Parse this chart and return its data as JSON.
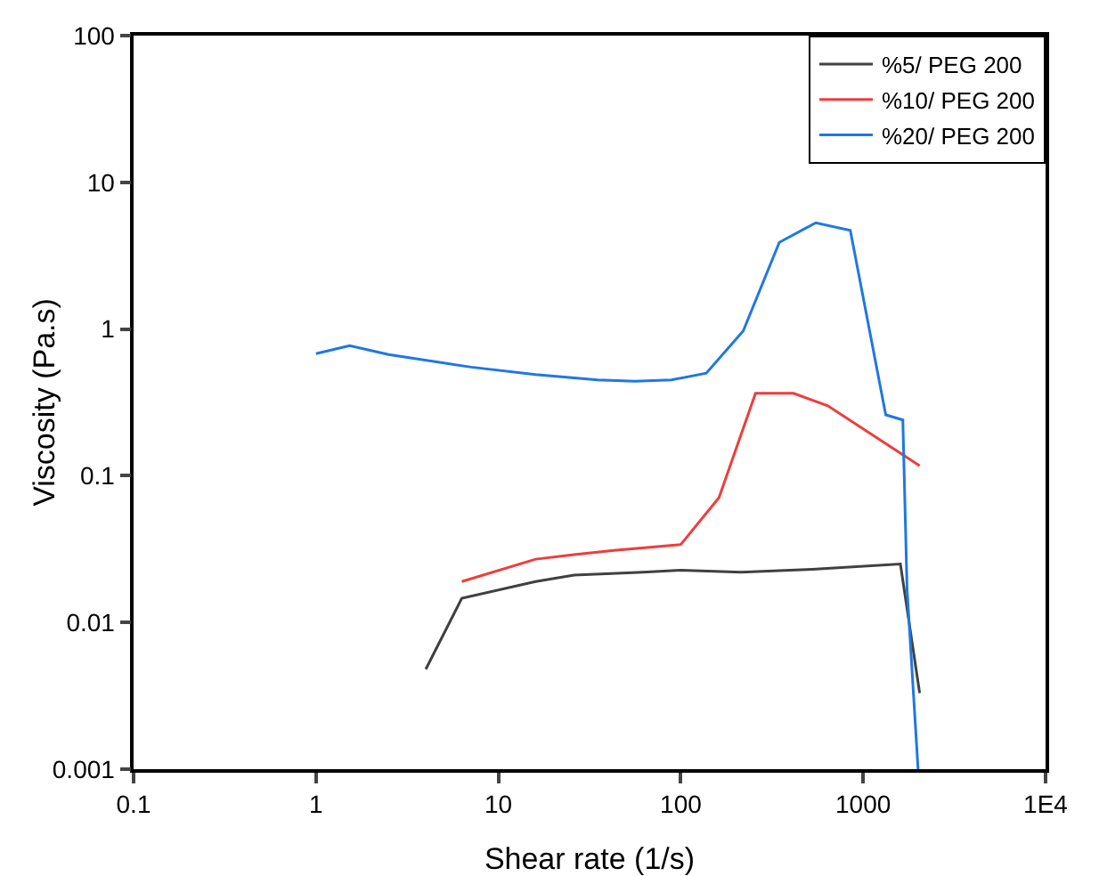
{
  "chart_data": {
    "type": "line",
    "xlabel": "Shear rate (1/s)",
    "ylabel": "Viscosity (Pa.s)",
    "log": "xy",
    "xlim": [
      0.1,
      10000
    ],
    "xticks": [
      0.1,
      1,
      10,
      100,
      1000,
      {
        "value": 10000,
        "label": "1E4"
      }
    ],
    "ylim": [
      0.001,
      100
    ],
    "yticks": [
      0.001,
      0.01,
      0.1,
      1,
      10,
      100
    ],
    "grid": false,
    "legend": "top right",
    "marker": "none",
    "line_style": "solid",
    "series": [
      {
        "name": "%5/ PEG 200",
        "color": "#404040",
        "x": [
          4,
          6.3,
          16,
          26,
          62,
          100,
          214,
          525,
          1600,
          2040
        ],
        "values": [
          0.0048,
          0.0146,
          0.019,
          0.021,
          0.022,
          0.0227,
          0.022,
          0.023,
          0.025,
          0.0033
        ]
      },
      {
        "name": "%10/ PEG 200",
        "color": "#f03c3c",
        "x": [
          6.3,
          16,
          26,
          43,
          100,
          162,
          257,
          415,
          640,
          2040
        ],
        "values": [
          0.019,
          0.027,
          0.029,
          0.031,
          0.034,
          0.071,
          0.365,
          0.365,
          0.3,
          0.117
        ]
      },
      {
        "name": "%20/ PEG 200",
        "color": "#1f77e4",
        "x": [
          1,
          1.53,
          2.5,
          7.1,
          16,
          35,
          56,
          89,
          138,
          220,
          347,
          550,
          850,
          1330,
          1650,
          1740,
          2000
        ],
        "values": [
          0.68,
          0.77,
          0.67,
          0.55,
          0.49,
          0.45,
          0.44,
          0.45,
          0.5,
          0.97,
          3.9,
          5.3,
          4.7,
          0.26,
          0.24,
          0.017,
          0.001
        ]
      }
    ]
  }
}
